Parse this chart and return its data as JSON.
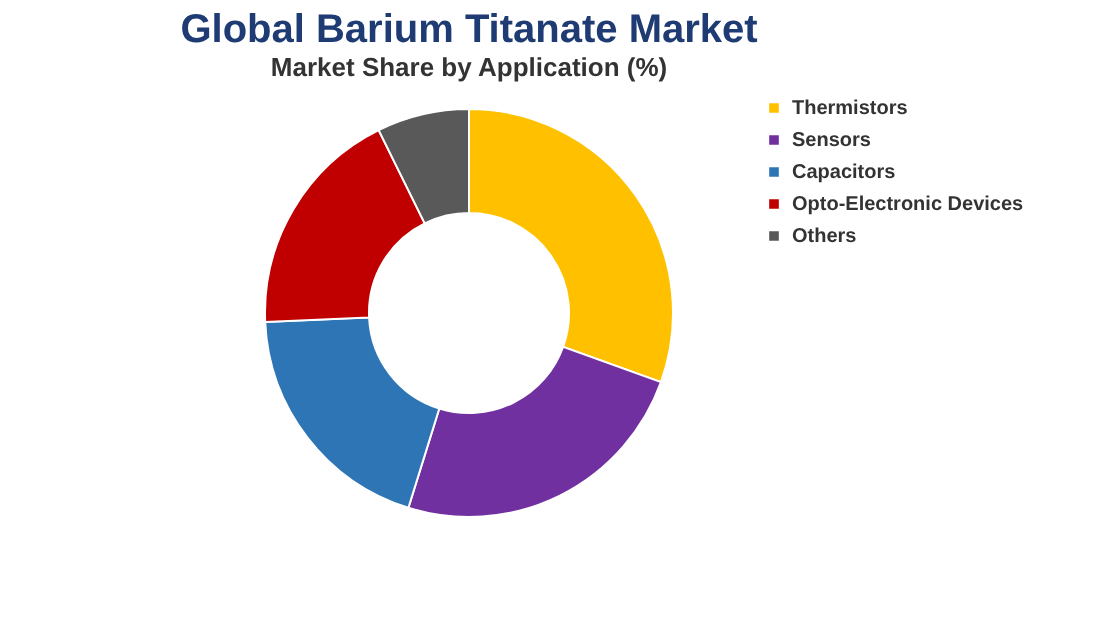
{
  "chart_data": {
    "type": "donut",
    "title": "Global Barium Titanate Market",
    "subtitle": "Market Share by Application (%)",
    "categories": [
      "Thermistors",
      "Sensors",
      "Capacitors",
      "Opto-Electronic Devices",
      "Others"
    ],
    "values": [
      30.5,
      24.3,
      19.5,
      18.4,
      7.3
    ],
    "colors": [
      "#ffc000",
      "#7030a0",
      "#2e75b6",
      "#c00000",
      "#595959"
    ],
    "legend": "right"
  }
}
